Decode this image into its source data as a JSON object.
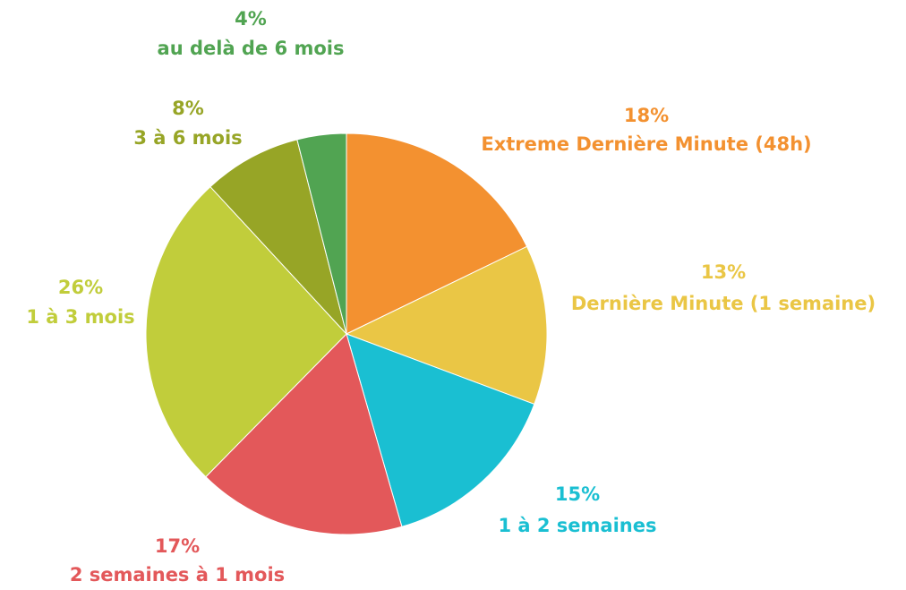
{
  "chart_data": {
    "type": "pie",
    "categories": [
      "Extreme Dernière Minute (48h)",
      "Dernière Minute (1 semaine)",
      "1 à 2 semaines",
      "2 semaines à 1 mois",
      "1 à 3 mois",
      "3 à 6 mois",
      "au delà de 6 mois"
    ],
    "values": [
      18,
      13,
      15,
      17,
      26,
      8,
      4
    ],
    "value_labels": [
      "18%",
      "13%",
      "15%",
      "17%",
      "26%",
      "8%",
      "4%"
    ],
    "colors": [
      "#f39130",
      "#eac645",
      "#1abfd2",
      "#e3585a",
      "#c1cd3b",
      "#97a526",
      "#51a452"
    ]
  }
}
